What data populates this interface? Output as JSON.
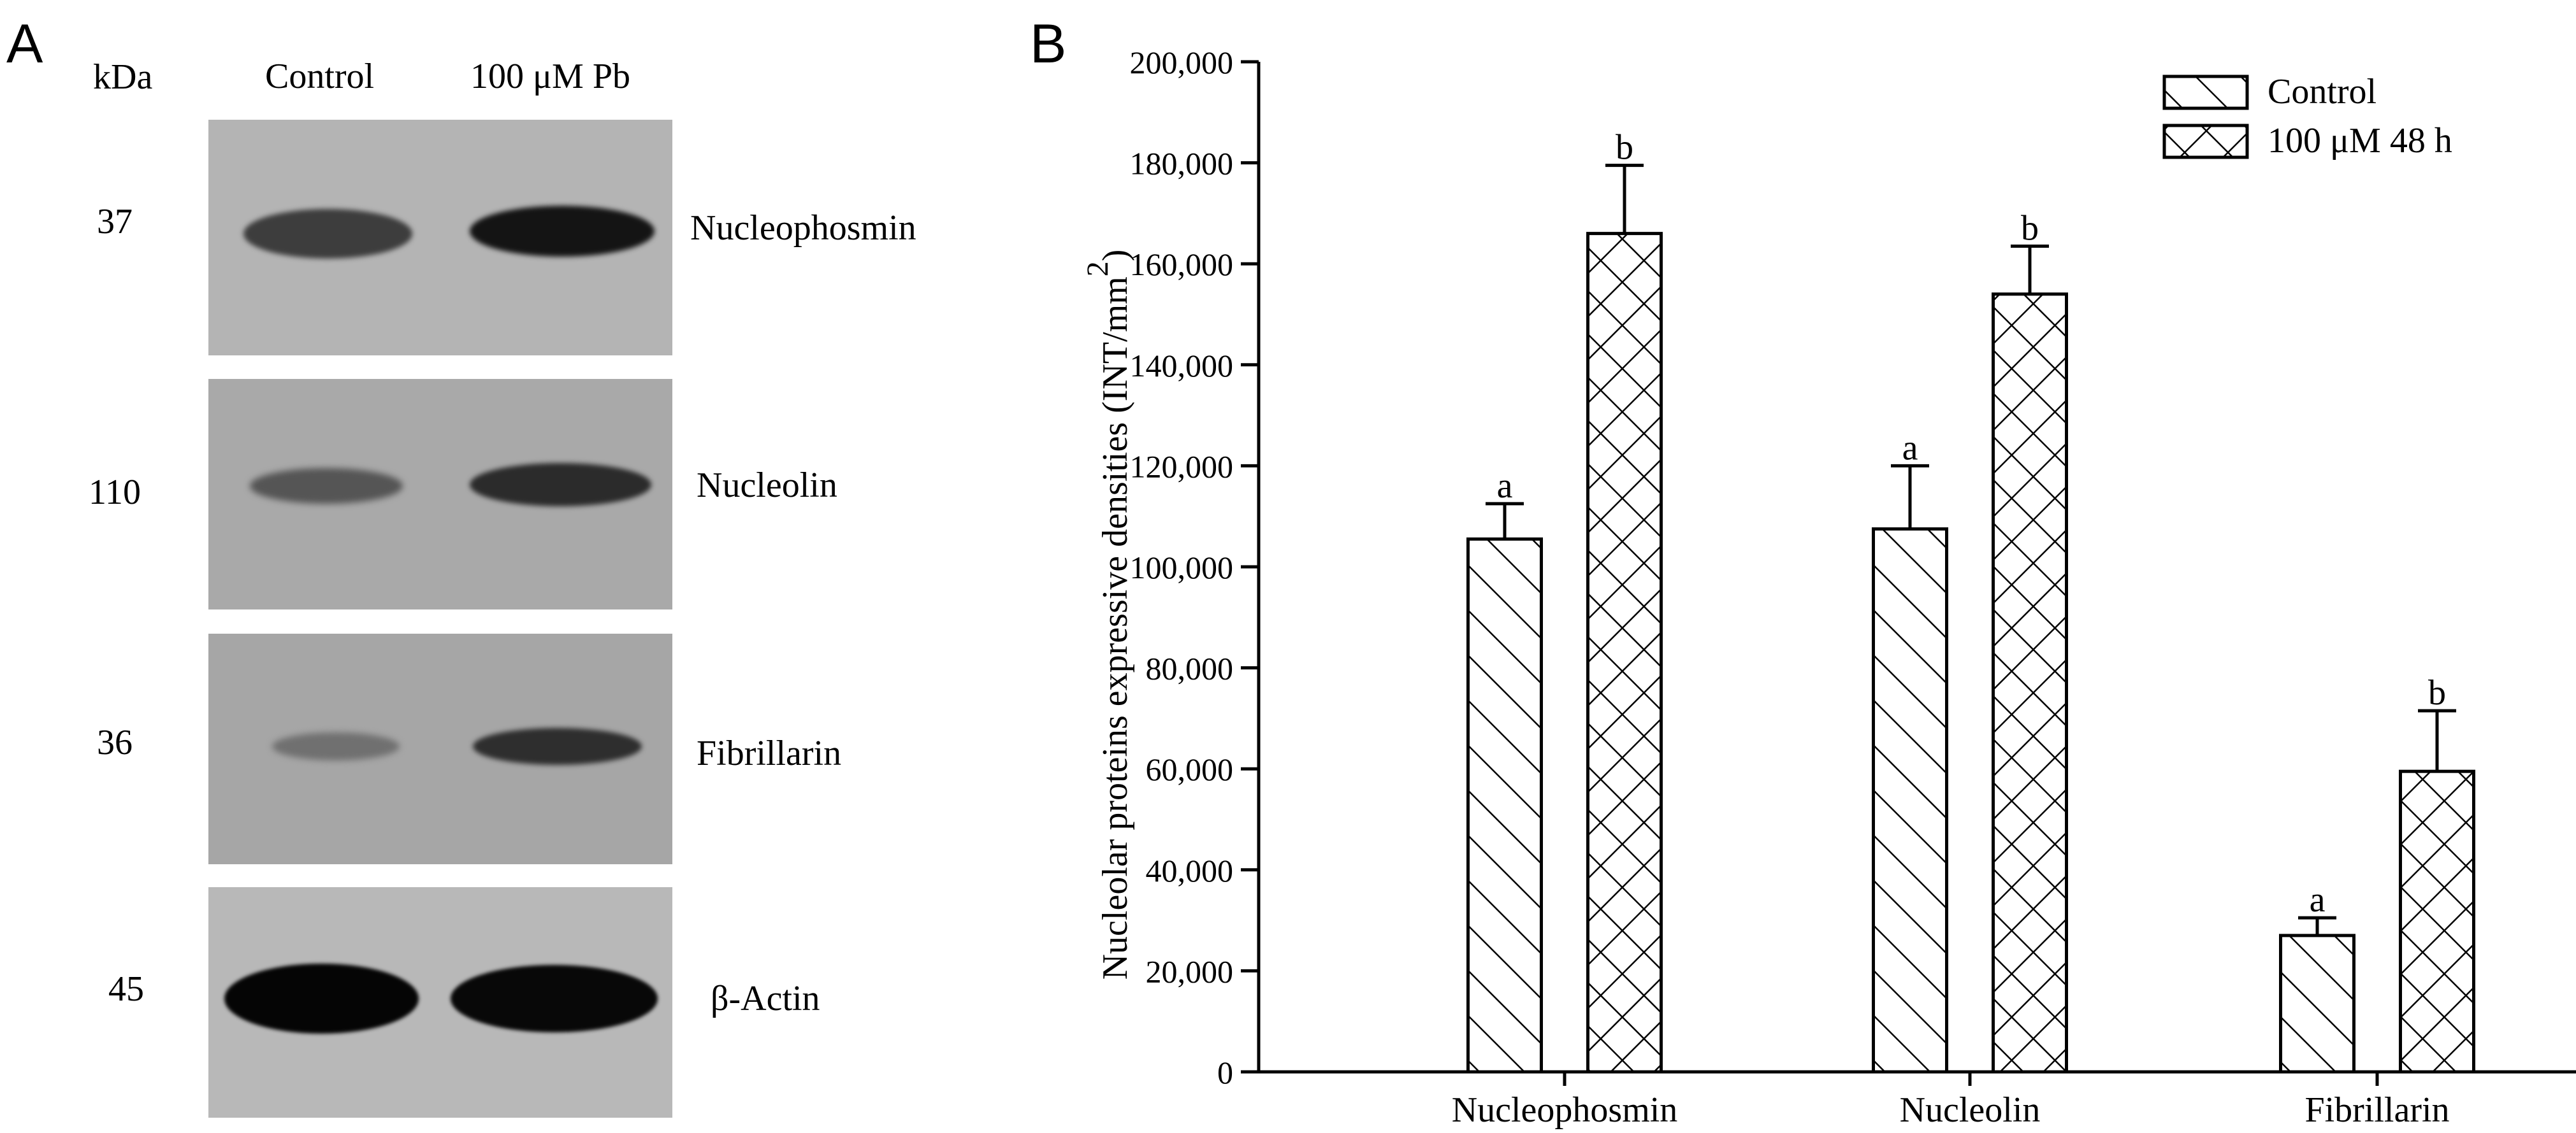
{
  "panel_a": {
    "letter": "A",
    "kda_header": "kDa",
    "lane_labels": [
      "Control",
      "100 μM Pb"
    ],
    "blots": [
      {
        "kda": "37",
        "protein": "Nucleophosmin",
        "band_intensity": [
          0.75,
          1.0
        ]
      },
      {
        "kda": "110",
        "protein": "Nucleolin",
        "band_intensity": [
          0.55,
          0.85
        ]
      },
      {
        "kda": "36",
        "protein": "Fibrillarin",
        "band_intensity": [
          0.4,
          0.8
        ]
      },
      {
        "kda": "45",
        "protein": "β-Actin",
        "band_intensity": [
          1.0,
          1.0
        ]
      }
    ]
  },
  "panel_b": {
    "letter": "B"
  },
  "chart_data": {
    "type": "bar",
    "categories": [
      "Nucleophosmin",
      "Nucleolin",
      "Fibrillarin"
    ],
    "series": [
      {
        "name": "Control",
        "values": [
          105500,
          107500,
          27000
        ],
        "errors": [
          7000,
          12500,
          3500
        ],
        "labels": [
          "a",
          "a",
          "a"
        ],
        "pattern": "diagonal-hatch"
      },
      {
        "name": "100 μM 48 h",
        "values": [
          166000,
          154000,
          59500
        ],
        "errors": [
          13500,
          9500,
          12000
        ],
        "labels": [
          "b",
          "b",
          "b"
        ],
        "pattern": "crosshatch"
      }
    ],
    "ylabel": "Nucleolar proteins expressive densities (INT/mm",
    "ylabel_superscript": "2",
    "ylabel_close": ")",
    "ylim": [
      0,
      200000
    ],
    "yticks": [
      0,
      20000,
      40000,
      60000,
      80000,
      100000,
      120000,
      140000,
      160000,
      180000,
      200000
    ],
    "ytick_labels": [
      "0",
      "20,000",
      "40,000",
      "60,000",
      "80,000",
      "100,000",
      "120,000",
      "140,000",
      "160,000",
      "180,000",
      "200,000"
    ],
    "legend_position": "top-right",
    "grid": false
  }
}
